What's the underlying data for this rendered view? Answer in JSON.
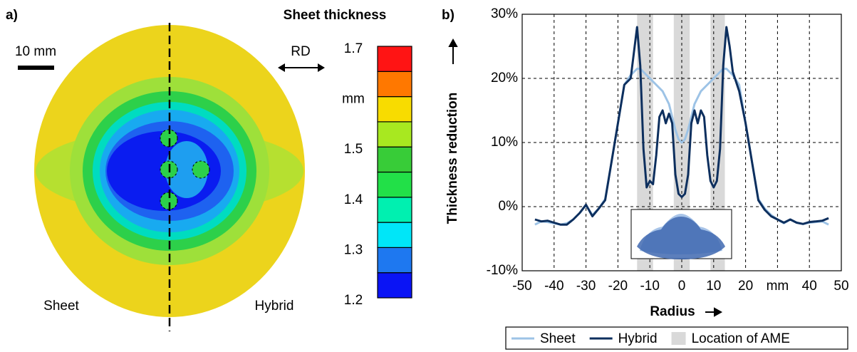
{
  "chart_data": [
    {
      "type": "colormap",
      "label": "a)",
      "title": "Sheet thickness",
      "annotations": {
        "scale": "10 mm",
        "direction": "RD",
        "left": "Sheet",
        "right": "Hybrid"
      },
      "colorbar": {
        "lim": [
          1.2,
          1.7
        ],
        "ticks": [
          1.2,
          1.3,
          1.4,
          1.5,
          {
            "value": 1.6,
            "label": "mm"
          },
          1.7
        ],
        "bins": [
          1.2,
          1.25,
          1.3,
          1.35,
          1.4,
          1.45,
          1.5,
          1.55,
          1.6,
          1.65,
          1.7
        ],
        "colors": [
          "#0a14f5",
          "#1e78f0",
          "#00e6f8",
          "#00f0b0",
          "#22e048",
          "#38cc38",
          "#a8e820",
          "#f8dc00",
          "#ff7800",
          "#ff1414"
        ]
      }
    },
    {
      "type": "line",
      "label": "b)",
      "xlabel": "Radius",
      "ylabel": "Thickness reduction",
      "xlim": [
        -50,
        50
      ],
      "ylim": [
        -10,
        30
      ],
      "xticks": [
        -50,
        -40,
        -30,
        -20,
        -10,
        0,
        10,
        20,
        {
          "value": 30,
          "label": "mm"
        },
        40,
        50
      ],
      "yticks": [
        {
          "value": -10,
          "label": "-10%"
        },
        {
          "value": 0,
          "label": "0%"
        },
        {
          "value": 10,
          "label": "10%"
        },
        {
          "value": 20,
          "label": "20%"
        },
        {
          "value": 30,
          "label": "30%"
        }
      ],
      "grid": true,
      "legend": "bottom",
      "regions": {
        "name": "Location of AME",
        "color": "#d9d9d9",
        "ranges": [
          [
            -14,
            -9
          ],
          [
            -2.5,
            2.5
          ],
          [
            9,
            13.5
          ]
        ]
      },
      "x": [
        -46,
        -44,
        -42,
        -40,
        -38,
        -36,
        -34,
        -32,
        -30,
        -28,
        -26,
        -24,
        -22,
        -20,
        -18,
        -16,
        -15,
        -14,
        -13,
        -12,
        -11,
        -10,
        -9,
        -8,
        -7,
        -6,
        -5,
        -4,
        -3,
        -2,
        -1,
        0,
        1,
        2,
        3,
        4,
        5,
        6,
        7,
        8,
        9,
        10,
        11,
        12,
        13,
        14,
        15,
        16,
        18,
        20,
        22,
        24,
        26,
        28,
        30,
        32,
        34,
        36,
        38,
        40,
        42,
        44,
        46
      ],
      "series": [
        {
          "name": "Sheet",
          "color": "#9dc3e6",
          "values": [
            -2.8,
            -2.3,
            -2.4,
            -2.6,
            -2.8,
            -2.6,
            -2,
            -1,
            0.2,
            -1.3,
            -0.3,
            1.2,
            7,
            13,
            19,
            20.5,
            21,
            21.5,
            21.5,
            21,
            20.5,
            20,
            19.5,
            19,
            18.5,
            18,
            17,
            16,
            14,
            12,
            10.5,
            10,
            10.5,
            12,
            14,
            16,
            17,
            18,
            18.5,
            19,
            19.5,
            20,
            20.5,
            21,
            21.5,
            21.5,
            21,
            20.5,
            19,
            13,
            7,
            1.2,
            -0.3,
            -1.3,
            -2,
            -2.6,
            -2,
            -2.5,
            -2.7,
            -2.5,
            -2.4,
            -2.3,
            -2.8
          ]
        },
        {
          "name": "Hybrid",
          "color": "#0d2f5e",
          "values": [
            -2,
            -2.3,
            -2.2,
            -2.5,
            -2.8,
            -2.8,
            -2,
            -1,
            0.3,
            -1.5,
            -0.3,
            1,
            7,
            13,
            19,
            20,
            24,
            28,
            22,
            9,
            3,
            4,
            3.5,
            8,
            14,
            15,
            13,
            14.5,
            13,
            5,
            2,
            1.5,
            2,
            5,
            13,
            15,
            13,
            15,
            14,
            8,
            4,
            3,
            4,
            9,
            22,
            28,
            25,
            21,
            18,
            13,
            7,
            1,
            -0.5,
            -1.5,
            -2,
            -2.5,
            -2,
            -2.5,
            -2.7,
            -2.4,
            -2.3,
            -2.2,
            -1.8
          ]
        }
      ]
    }
  ]
}
